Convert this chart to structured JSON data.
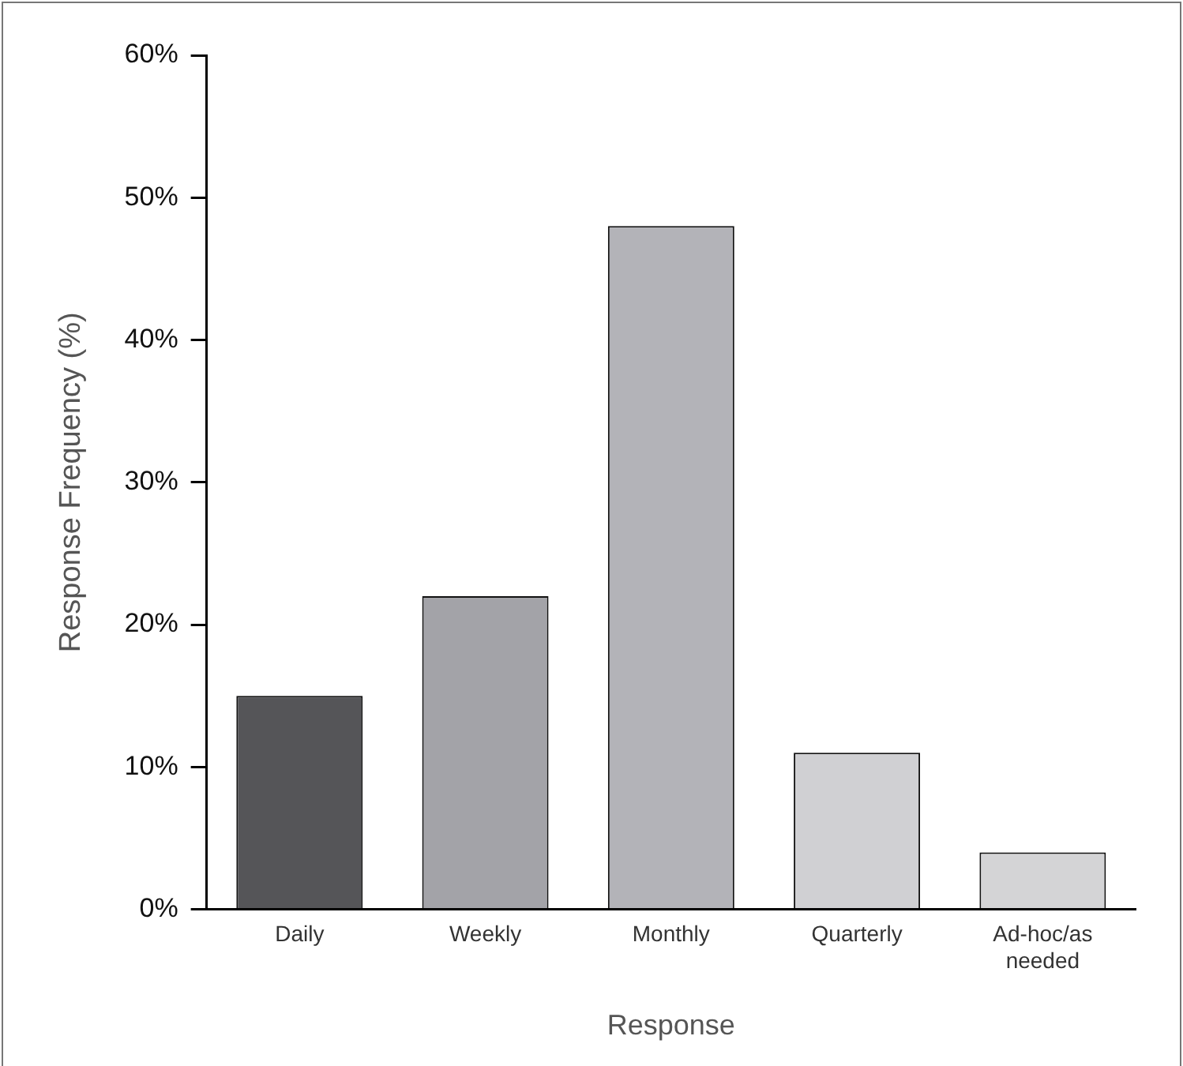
{
  "chart_data": {
    "type": "bar",
    "xlabel": "Response",
    "ylabel": "Response Frequency (%)",
    "categories": [
      "Daily",
      "Weekly",
      "Monthly",
      "Quarterly",
      "Ad-hoc/as needed"
    ],
    "values": [
      15,
      22,
      48,
      11,
      4
    ],
    "colors": [
      "#555558",
      "#a3a3a8",
      "#b3b3b8",
      "#d0d0d3",
      "#d4d4d6"
    ],
    "ylim": [
      0,
      60
    ],
    "yticks": [
      {
        "value": 0,
        "label": "0%"
      },
      {
        "value": 10,
        "label": "10%"
      },
      {
        "value": 20,
        "label": "20%"
      },
      {
        "value": 30,
        "label": "30%"
      },
      {
        "value": 40,
        "label": "40%"
      },
      {
        "value": 50,
        "label": "50%"
      },
      {
        "value": 60,
        "label": "60%"
      }
    ],
    "grid": false,
    "legend": false
  }
}
